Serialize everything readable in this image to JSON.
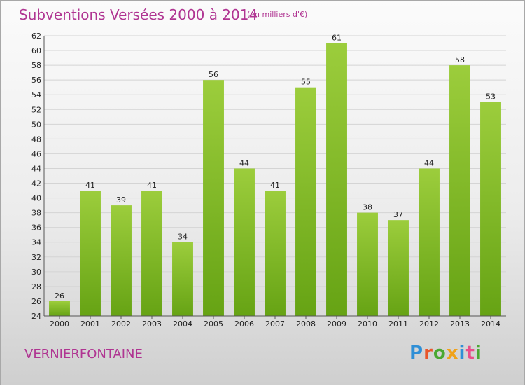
{
  "header": {
    "title": "Subventions Versées 2000 à 2014",
    "subtitle": "(en milliers d'€)"
  },
  "footer": {
    "town": "VERNIERFONTAINE",
    "logo_text": "Proxiti"
  },
  "colors": {
    "title": "#b03592",
    "bar_top": "#9ccd3c",
    "bar_bottom": "#66a314",
    "grid": "#d4d4d4"
  },
  "chart_data": {
    "type": "bar",
    "categories": [
      "2000",
      "2001",
      "2002",
      "2003",
      "2004",
      "2005",
      "2006",
      "2007",
      "2008",
      "2009",
      "2010",
      "2011",
      "2012",
      "2013",
      "2014"
    ],
    "values": [
      26,
      41,
      39,
      41,
      34,
      56,
      44,
      41,
      55,
      61,
      38,
      37,
      44,
      58,
      53
    ],
    "title": "Subventions Versées 2000 à 2014",
    "ylabel": "(en milliers d'€)",
    "ylim": [
      24,
      62
    ],
    "yticks": [
      24,
      26,
      28,
      30,
      32,
      34,
      36,
      38,
      40,
      42,
      44,
      46,
      48,
      50,
      52,
      54,
      56,
      58,
      60,
      62
    ],
    "grid": true,
    "legend": "none"
  }
}
